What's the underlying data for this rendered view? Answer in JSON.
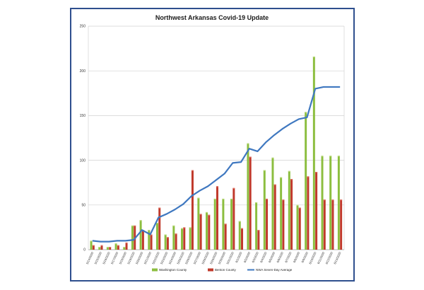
{
  "chart_data": {
    "type": "bar",
    "title": "Northwest Arkansas Covid-19 Update",
    "ylim": [
      0,
      250
    ],
    "yticks": [
      0,
      50,
      100,
      150,
      200,
      250
    ],
    "grid": true,
    "legend_placement": "bottom",
    "categories": [
      "5/14/2020",
      "5/15/2020",
      "5/16/2020",
      "5/17/2020",
      "5/18/2020",
      "5/19/2020",
      "5/20/2020",
      "5/21/2020",
      "5/22/2020",
      "5/23/2020",
      "5/24/2020",
      "5/25/2020",
      "5/26/2020",
      "5/27/2020",
      "5/28/2020",
      "5/29/2020",
      "5/30/2020",
      "5/31/2020",
      "6/1/2020",
      "6/2/2020",
      "6/3/2020",
      "6/4/2020",
      "6/5/2020",
      "6/6/2020",
      "6/7/2020",
      "6/8/2020",
      "6/9/2020",
      "6/10/2020",
      "6/11/2020",
      "6/12/2020",
      "6/13/2020"
    ],
    "xtick_labels": [
      "5/14/2020",
      "5/15/2020",
      "5/16/2020",
      "5/17/2020",
      "5/18/2020",
      "5/19/2020",
      "5/20/2020",
      "5/21/2020",
      "5/22/2020",
      "5/23/2020",
      "5/24/2020",
      "5/25/2020",
      "5/26/2020",
      "5/27/2020",
      "5/28/2020",
      "5/29/2020",
      "5/30/2020",
      "5/31/2020",
      "6/1/2020",
      "6/2/2020",
      "6/3/2020",
      "6/4/2020",
      "6/5/2020",
      "6/6/2020",
      "6/7/2020",
      "6/8/2020",
      "6/9/2020",
      "6/10/2020",
      "6/11/2020",
      "6/12/2020",
      "6/13/2020"
    ],
    "series": [
      {
        "name": "Washington County",
        "type": "bar",
        "color": "#8cbe3f",
        "values": [
          10,
          3,
          3,
          7,
          3,
          27,
          33,
          22,
          30,
          17,
          27,
          24,
          25,
          58,
          42,
          57,
          57,
          57,
          32,
          119,
          53,
          89,
          103,
          81,
          88,
          50,
          154,
          216,
          105,
          105,
          105
        ]
      },
      {
        "name": "Benton County",
        "type": "bar",
        "color": "#c0392b",
        "values": [
          5,
          5,
          3,
          5,
          8,
          27,
          22,
          17,
          47,
          14,
          18,
          25,
          89,
          40,
          39,
          71,
          29,
          69,
          24,
          104,
          22,
          57,
          73,
          56,
          79,
          47,
          82,
          87,
          56,
          56,
          56
        ]
      },
      {
        "name": "NWA Seven-Day Average",
        "type": "line",
        "color": "#3f78c0",
        "values": [
          10,
          9,
          9,
          10,
          10,
          11,
          22,
          17,
          36,
          40,
          45,
          51,
          60,
          66,
          71,
          78,
          85,
          97,
          98,
          113,
          110,
          120,
          128,
          135,
          141,
          146,
          148,
          180,
          182,
          182,
          182
        ]
      }
    ]
  }
}
